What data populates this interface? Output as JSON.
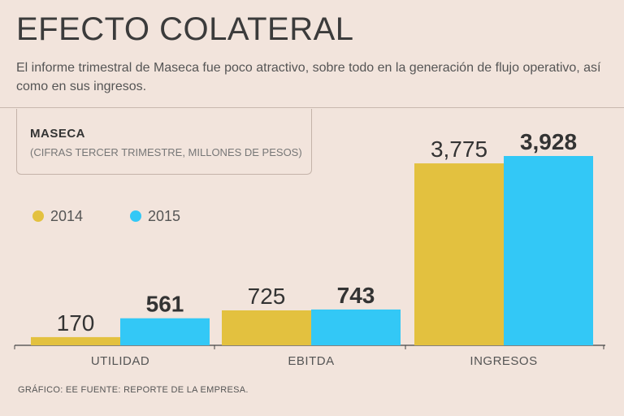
{
  "header": {
    "title": "EFECTO COLATERAL",
    "subtitle": "El informe trimestral de Maseca fue poco atractivo, sobre todo en la generación de flujo operativo, así como en sus ingresos."
  },
  "info_box": {
    "company": "MASECA",
    "units": "(CIFRAS TERCER TRIMESTRE, MILLONES DE PESOS)"
  },
  "footer": {
    "source": "GRÁFICO: EE  FUENTE: REPORTE DE LA EMPRESA."
  },
  "colors": {
    "series_2014": "#e3c13f",
    "series_2015": "#33c8f6",
    "axis": "#444444",
    "background": "#f2e4dc"
  },
  "chart_data": {
    "type": "bar",
    "title": "MASECA",
    "subtitle": "(CIFRAS TERCER TRIMESTRE, MILLONES DE PESOS)",
    "categories": [
      "UTILIDAD",
      "EBITDA",
      "INGRESOS"
    ],
    "series": [
      {
        "name": "2014",
        "values": [
          170,
          725,
          3775
        ],
        "labels": [
          "170",
          "725",
          "3,775"
        ]
      },
      {
        "name": "2015",
        "values": [
          561,
          743,
          3928
        ],
        "labels": [
          "561",
          "743",
          "3,928"
        ]
      }
    ],
    "legend_position": "left",
    "xlabel": "",
    "ylabel": "",
    "ylim": [
      0,
      4200
    ],
    "grid": false
  }
}
